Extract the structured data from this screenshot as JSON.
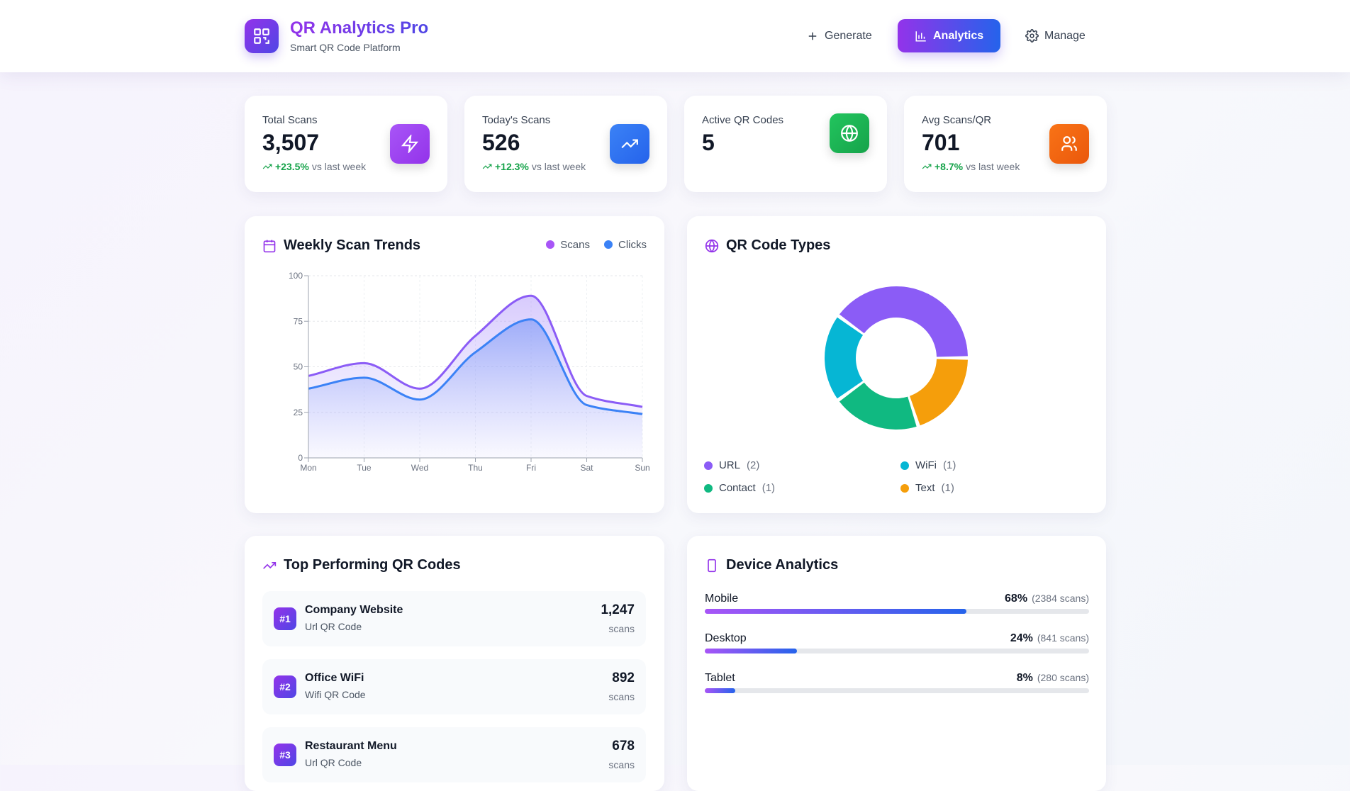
{
  "header": {
    "title": "QR Analytics Pro",
    "subtitle": "Smart QR Code Platform",
    "logo_icon": "qr-code-icon",
    "nav": [
      {
        "label": "Generate",
        "icon": "plus-icon"
      },
      {
        "label": "Analytics",
        "icon": "bar-chart-icon",
        "active": true
      },
      {
        "label": "Manage",
        "icon": "gear-icon"
      }
    ]
  },
  "stats": [
    {
      "label": "Total Scans",
      "value": "3,507",
      "change": "+23.5%",
      "change_suffix": "vs last week",
      "icon": "zap-icon",
      "color": "#9333ea"
    },
    {
      "label": "Today's Scans",
      "value": "526",
      "change": "+12.3%",
      "change_suffix": "vs last week",
      "icon": "trending-up-icon",
      "color": "#2563eb"
    },
    {
      "label": "Active QR Codes",
      "value": "5",
      "icon": "globe-icon",
      "color": "#16a34a"
    },
    {
      "label": "Avg Scans/QR",
      "value": "701",
      "change": "+8.7%",
      "change_suffix": "vs last week",
      "icon": "users-icon",
      "color": "#ea580c"
    }
  ],
  "weekly": {
    "title": "Weekly Scan Trends"
  },
  "types": {
    "title": "QR Code Types"
  },
  "top": {
    "title": "Top Performing QR Codes",
    "scans_label": "scans",
    "items": [
      {
        "rank": "#1",
        "name": "Company Website",
        "type": "Url QR Code",
        "count": "1,247"
      },
      {
        "rank": "#2",
        "name": "Office WiFi",
        "type": "Wifi QR Code",
        "count": "892"
      },
      {
        "rank": "#3",
        "name": "Restaurant Menu",
        "type": "Url QR Code",
        "count": "678"
      }
    ]
  },
  "devices": {
    "title": "Device Analytics",
    "items": [
      {
        "label": "Mobile",
        "pct": "68%",
        "scans": "(2384 scans)",
        "value": 68
      },
      {
        "label": "Desktop",
        "pct": "24%",
        "scans": "(841 scans)",
        "value": 24
      },
      {
        "label": "Tablet",
        "pct": "8%",
        "scans": "(280 scans)",
        "value": 8
      }
    ]
  },
  "chart_data": [
    {
      "type": "area",
      "categories": [
        "Mon",
        "Tue",
        "Wed",
        "Thu",
        "Fri",
        "Sat",
        "Sun"
      ],
      "ylim": [
        0,
        100
      ],
      "yticks": [
        "0",
        "25",
        "50",
        "75",
        "100"
      ],
      "grid": true,
      "legend": "top-right",
      "series": [
        {
          "name": "Scans",
          "color": "#8b5cf6",
          "values": [
            45,
            52,
            38,
            67,
            89,
            34,
            28
          ]
        },
        {
          "name": "Clicks",
          "color": "#3b82f6",
          "values": [
            38,
            44,
            32,
            58,
            76,
            29,
            24
          ]
        }
      ]
    },
    {
      "type": "pie",
      "donut": true,
      "legend": "bottom",
      "slices": [
        {
          "name": "URL",
          "value": 2,
          "label": "(2)",
          "color": "#8b5cf6"
        },
        {
          "name": "WiFi",
          "value": 1,
          "label": "(1)",
          "color": "#06b6d4"
        },
        {
          "name": "Contact",
          "value": 1,
          "label": "(1)",
          "color": "#10b981"
        },
        {
          "name": "Text",
          "value": 1,
          "label": "(1)",
          "color": "#f59e0b"
        }
      ]
    }
  ]
}
